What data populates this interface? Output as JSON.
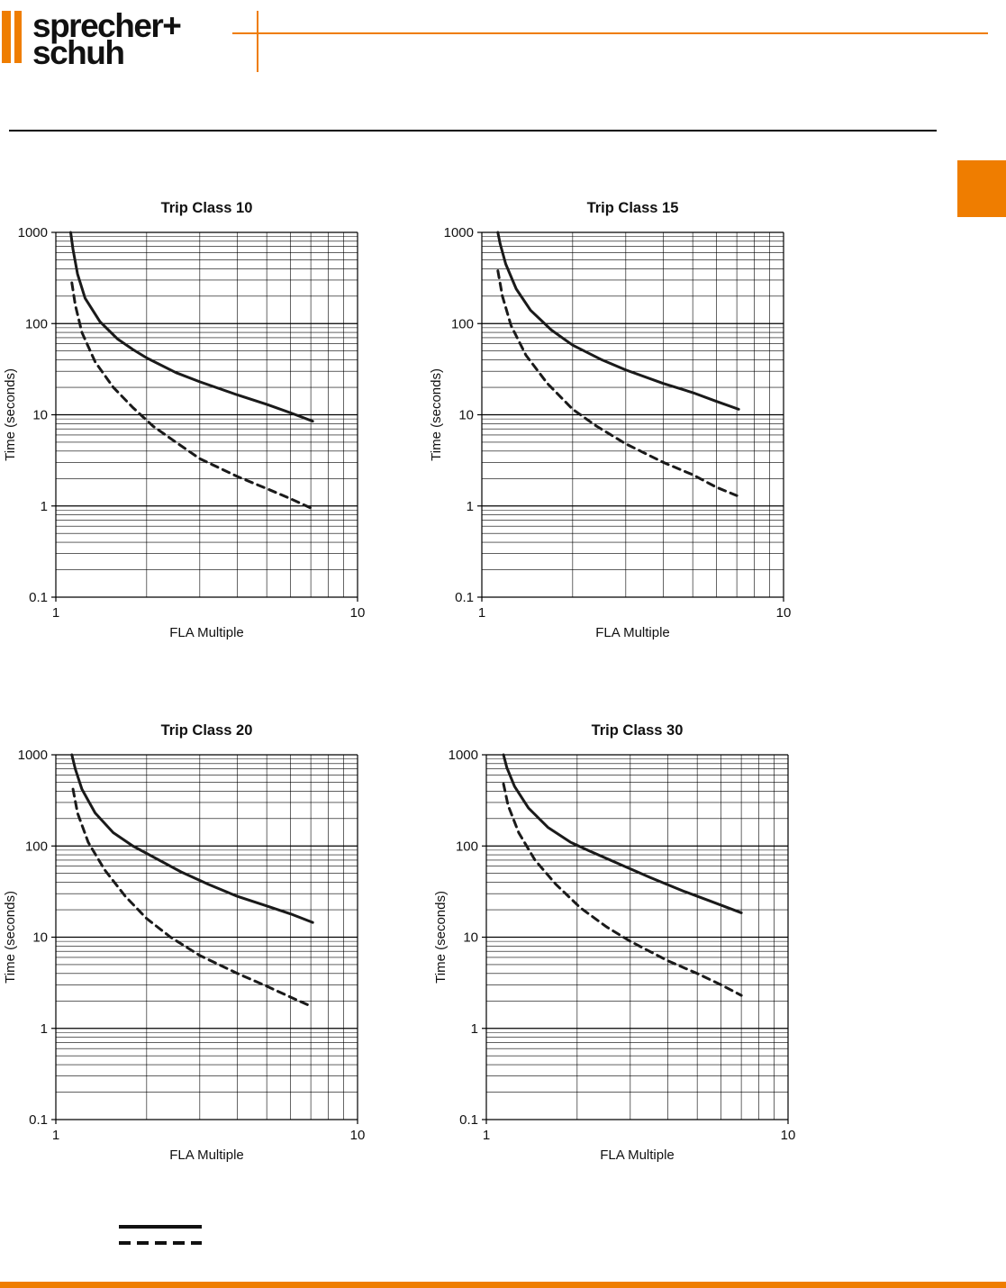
{
  "brand": {
    "line1": "sprecher+",
    "line2": "schuh"
  },
  "colors": {
    "accent": "#EF7D00",
    "curve": "#1a1a1a"
  },
  "legend": {
    "entries": [
      {
        "style": "solid"
      },
      {
        "style": "dashed"
      }
    ]
  },
  "chart_data": [
    {
      "type": "line",
      "title": "Trip Class 10",
      "xlabel": "FLA Multiple",
      "ylabel": "Time (seconds)",
      "xscale": "log",
      "yscale": "log",
      "xlim": [
        1,
        10
      ],
      "ylim": [
        0.1,
        1000
      ],
      "x_tick_labels": [
        "1",
        "10"
      ],
      "y_tick_labels": [
        "1000",
        "100",
        "10",
        "1",
        "0.1"
      ],
      "grid": true,
      "legend_position": "none",
      "series": [
        {
          "name": "solid-curve",
          "style": "solid",
          "x": [
            1.12,
            1.14,
            1.18,
            1.25,
            1.4,
            1.6,
            1.8,
            2.0,
            2.5,
            3.0,
            4.0,
            5.0,
            6.0,
            7.1
          ],
          "y": [
            1000,
            650,
            350,
            190,
            105,
            68,
            52,
            42,
            29,
            23,
            16.5,
            13,
            10.5,
            8.5
          ]
        },
        {
          "name": "dashed-curve",
          "style": "dashed",
          "x": [
            1.13,
            1.16,
            1.22,
            1.35,
            1.55,
            1.8,
            2.1,
            2.5,
            3.0,
            4.0,
            5.0,
            6.0,
            7.0
          ],
          "y": [
            280,
            160,
            80,
            38,
            20,
            12,
            7.5,
            5.0,
            3.3,
            2.1,
            1.55,
            1.2,
            0.95
          ]
        }
      ]
    },
    {
      "type": "line",
      "title": "Trip Class 15",
      "xlabel": "FLA Multiple",
      "ylabel": "Time (seconds)",
      "xscale": "log",
      "yscale": "log",
      "xlim": [
        1,
        10
      ],
      "ylim": [
        0.1,
        1000
      ],
      "x_tick_labels": [
        "1",
        "10"
      ],
      "y_tick_labels": [
        "1000",
        "100",
        "10",
        "1",
        "0.1"
      ],
      "grid": true,
      "legend_position": "none",
      "series": [
        {
          "name": "solid-curve",
          "style": "solid",
          "x": [
            1.13,
            1.15,
            1.2,
            1.3,
            1.45,
            1.7,
            2.0,
            2.5,
            3.0,
            4.0,
            5.0,
            6.0,
            7.1
          ],
          "y": [
            1000,
            750,
            450,
            240,
            140,
            85,
            58,
            40,
            31,
            22,
            17.5,
            14,
            11.5
          ]
        },
        {
          "name": "dashed-curve",
          "style": "dashed",
          "x": [
            1.13,
            1.17,
            1.25,
            1.4,
            1.65,
            2.0,
            2.4,
            3.0,
            4.0,
            5.0,
            6.0,
            7.0
          ],
          "y": [
            380,
            200,
            95,
            45,
            22,
            11.5,
            7.5,
            4.8,
            3.0,
            2.2,
            1.6,
            1.3
          ]
        }
      ]
    },
    {
      "type": "line",
      "title": "Trip Class 20",
      "xlabel": "FLA Multiple",
      "ylabel": "Time (seconds)",
      "xscale": "log",
      "yscale": "log",
      "xlim": [
        1,
        10
      ],
      "ylim": [
        0.1,
        1000
      ],
      "x_tick_labels": [
        "1",
        "10"
      ],
      "y_tick_labels": [
        "1000",
        "100",
        "10",
        "1",
        "0.1"
      ],
      "grid": true,
      "legend_position": "none",
      "series": [
        {
          "name": "solid-curve",
          "style": "solid",
          "x": [
            1.13,
            1.16,
            1.22,
            1.35,
            1.55,
            1.8,
            2.1,
            2.6,
            3.2,
            4.0,
            5.0,
            6.0,
            7.1
          ],
          "y": [
            1000,
            700,
            420,
            230,
            140,
            100,
            76,
            52,
            38,
            28,
            22,
            18,
            14.5
          ]
        },
        {
          "name": "dashed-curve",
          "style": "dashed",
          "x": [
            1.14,
            1.18,
            1.28,
            1.45,
            1.7,
            2.0,
            2.4,
            3.0,
            4.0,
            5.0,
            6.0,
            7.0
          ],
          "y": [
            420,
            230,
            110,
            55,
            28,
            16,
            10,
            6.3,
            4.0,
            2.9,
            2.2,
            1.75
          ]
        }
      ]
    },
    {
      "type": "line",
      "title": "Trip Class 30",
      "xlabel": "FLA Multiple",
      "ylabel": "Time (seconds)",
      "xscale": "log",
      "yscale": "log",
      "xlim": [
        1,
        10
      ],
      "ylim": [
        0.1,
        1000
      ],
      "x_tick_labels": [
        "1",
        "10"
      ],
      "y_tick_labels": [
        "1000",
        "100",
        "10",
        "1",
        "0.1"
      ],
      "grid": true,
      "legend_position": "none",
      "series": [
        {
          "name": "solid-curve",
          "style": "solid",
          "x": [
            1.14,
            1.17,
            1.24,
            1.38,
            1.6,
            1.9,
            2.2,
            2.8,
            3.5,
            4.5,
            5.5,
            7.0
          ],
          "y": [
            1000,
            720,
            450,
            260,
            160,
            110,
            88,
            62,
            45,
            32,
            25,
            18.5
          ]
        },
        {
          "name": "dashed-curve",
          "style": "dashed",
          "x": [
            1.14,
            1.18,
            1.28,
            1.45,
            1.7,
            2.05,
            2.5,
            3.0,
            4.0,
            5.0,
            6.0,
            7.0
          ],
          "y": [
            480,
            280,
            140,
            70,
            38,
            21,
            13,
            9,
            5.5,
            4.0,
            3.0,
            2.3
          ]
        }
      ]
    }
  ]
}
